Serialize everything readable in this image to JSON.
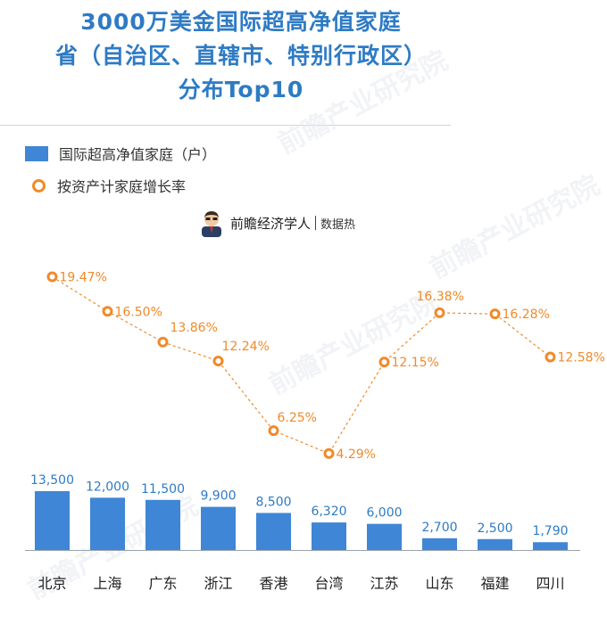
{
  "header": {
    "title_lines": [
      "3000万美金国际超高净值家庭",
      "省（自治区、直辖市、特别行政区）",
      "分布Top10"
    ]
  },
  "legend": {
    "bar_label": "国际超高净值家庭（户）",
    "line_label": "按资产计家庭增长率"
  },
  "source": {
    "name": "前瞻经济学人",
    "tail": "数据热"
  },
  "watermark": {
    "text": "前瞻产业研究院"
  },
  "colors": {
    "bar": "#3f86d6",
    "line": "#f08a2a",
    "title": "#2e7bc4",
    "bar_label": "#2e7bc4"
  },
  "chart_data": {
    "type": "bar",
    "categories": [
      "北京",
      "上海",
      "广东",
      "浙江",
      "香港",
      "台湾",
      "江苏",
      "山东",
      "福建",
      "四川"
    ],
    "series": [
      {
        "type": "bar",
        "values": [
          13500,
          12000,
          11500,
          9900,
          8500,
          6320,
          6000,
          2700,
          2500,
          1790
        ],
        "labels": [
          "13,500",
          "12,000",
          "11,500",
          "9,900",
          "8,500",
          "6,320",
          "6,000",
          "2,700",
          "2,500",
          "1,790"
        ]
      },
      {
        "type": "line",
        "values": [
          19.47,
          16.5,
          13.86,
          12.24,
          6.25,
          4.29,
          12.15,
          16.38,
          16.28,
          12.58
        ],
        "labels": [
          "19.47%",
          "16.50%",
          "13.86%",
          "12.24%",
          "6.25%",
          "4.29%",
          "12.15%",
          "16.38%",
          "16.28%",
          "12.58%"
        ]
      }
    ],
    "legend_position": "top-left",
    "grid": false
  }
}
